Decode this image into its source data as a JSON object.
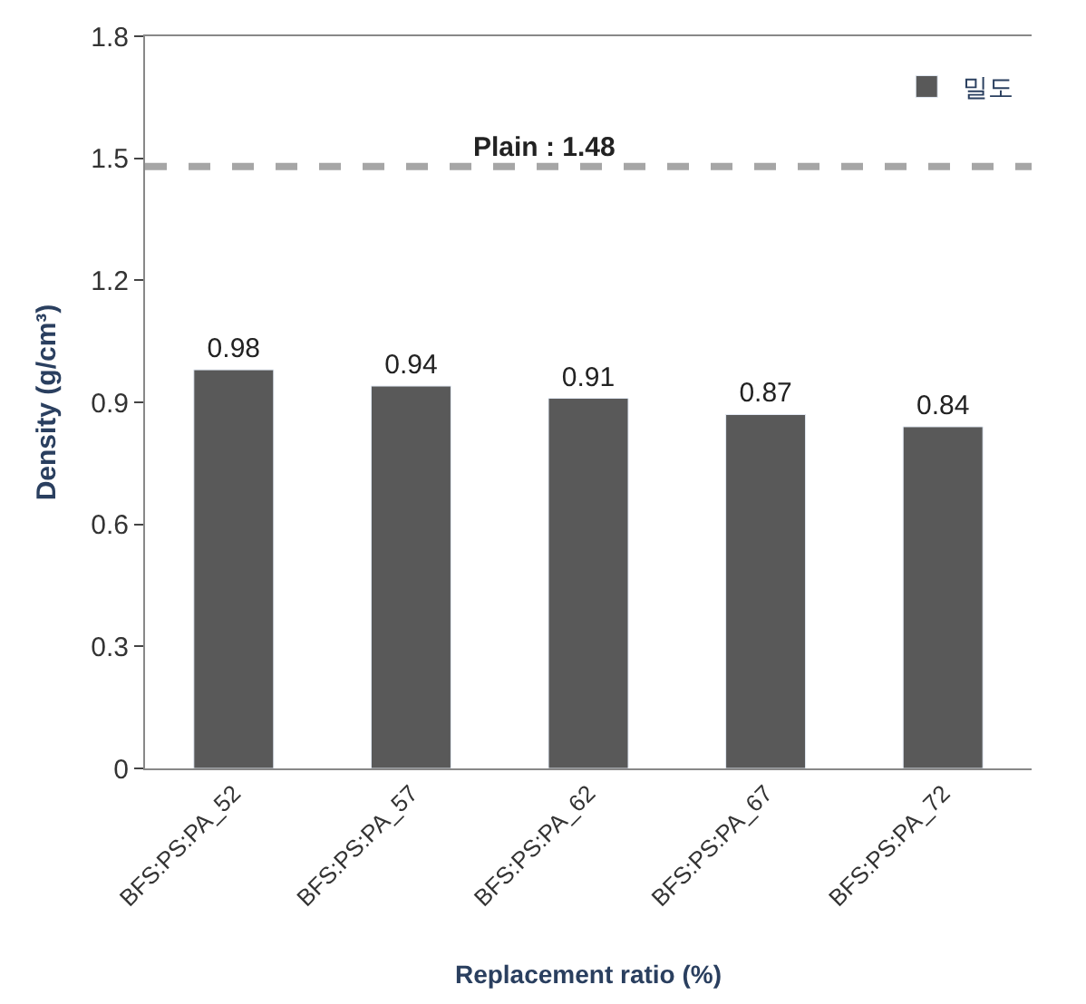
{
  "chart_data": {
    "type": "bar",
    "xlabel": "Replacement ratio (%)",
    "ylabel": "Density (g/cm³)",
    "categories": [
      "BFS:PS:PA_52",
      "BFS:PS:PA_57",
      "BFS:PS:PA_62",
      "BFS:PS:PA_67",
      "BFS:PS:PA_72"
    ],
    "series": [
      {
        "name": "밀도",
        "color": "#595959",
        "values": [
          0.98,
          0.94,
          0.91,
          0.87,
          0.84
        ]
      }
    ],
    "data_labels": true,
    "ylim": [
      0,
      1.8
    ],
    "yticks": [
      0,
      0.3,
      0.6,
      0.9,
      1.2,
      1.5,
      1.8
    ],
    "ref_lines": [
      {
        "axis": "y",
        "value": 1.48,
        "label": "Plain : 1.48",
        "color": "#a6a6a6",
        "line_style": "dashed"
      }
    ],
    "legend": "top right"
  }
}
